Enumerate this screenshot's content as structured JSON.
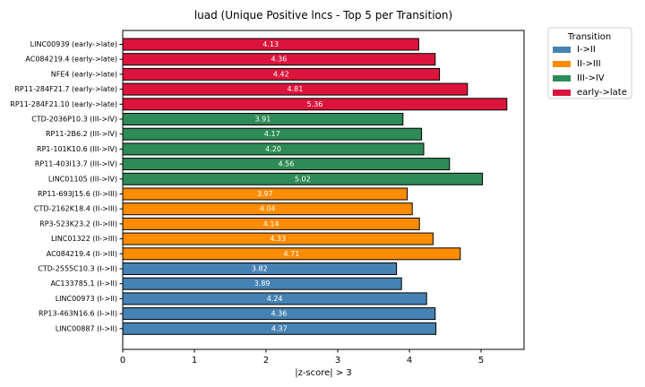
{
  "chart_data": {
    "type": "bar",
    "orientation": "horizontal",
    "title": "luad (Unique Positive lncs - Top 5 per Transition)",
    "xlabel": "|z-score| > 3",
    "ylabel": "",
    "xlim": [
      0,
      5.6
    ],
    "xticks": [
      0,
      1,
      2,
      3,
      4,
      5
    ],
    "grid": false,
    "legend": {
      "title": "Transition",
      "placement": "outside-top-right",
      "entries": [
        {
          "label": "I->II",
          "color": "#4682b4"
        },
        {
          "label": "II->III",
          "color": "#ff8c00"
        },
        {
          "label": "III->IV",
          "color": "#2e8b57"
        },
        {
          "label": "early->late",
          "color": "#dc143c"
        }
      ]
    },
    "bars": [
      {
        "label": "LINC00939 (early->late)",
        "value": 4.13,
        "value_label": "4.13",
        "group": "early->late"
      },
      {
        "label": "AC084219.4 (early->late)",
        "value": 4.36,
        "value_label": "4.36",
        "group": "early->late"
      },
      {
        "label": "NFE4 (early->late)",
        "value": 4.42,
        "value_label": "4.42",
        "group": "early->late"
      },
      {
        "label": "RP11-284F21.7 (early->late)",
        "value": 4.81,
        "value_label": "4.81",
        "group": "early->late"
      },
      {
        "label": "RP11-284F21.10 (early->late)",
        "value": 5.36,
        "value_label": "5.36",
        "group": "early->late"
      },
      {
        "label": "CTD-2036P10.3 (III->IV)",
        "value": 3.91,
        "value_label": "3.91",
        "group": "III->IV"
      },
      {
        "label": "RP11-2B6.2 (III->IV)",
        "value": 4.17,
        "value_label": "4.17",
        "group": "III->IV"
      },
      {
        "label": "RP1-101K10.6 (III->IV)",
        "value": 4.2,
        "value_label": "4.20",
        "group": "III->IV"
      },
      {
        "label": "RP11-403I13.7 (III->IV)",
        "value": 4.56,
        "value_label": "4.56",
        "group": "III->IV"
      },
      {
        "label": "LINC01105 (III->IV)",
        "value": 5.02,
        "value_label": "5.02",
        "group": "III->IV"
      },
      {
        "label": "RP11-693J15.6 (II->III)",
        "value": 3.97,
        "value_label": "3.97",
        "group": "II->III"
      },
      {
        "label": "CTD-2162K18.4 (II->III)",
        "value": 4.04,
        "value_label": "4.04",
        "group": "II->III"
      },
      {
        "label": "RP3-523K23.2 (II->III)",
        "value": 4.14,
        "value_label": "4.14",
        "group": "II->III"
      },
      {
        "label": "LINC01322 (II->III)",
        "value": 4.33,
        "value_label": "4.33",
        "group": "II->III"
      },
      {
        "label": "AC084219.4 (II->III)",
        "value": 4.71,
        "value_label": "4.71",
        "group": "II->III"
      },
      {
        "label": "CTD-2555C10.3 (I->II)",
        "value": 3.82,
        "value_label": "3.82",
        "group": "I->II"
      },
      {
        "label": "AC133785.1 (I->II)",
        "value": 3.89,
        "value_label": "3.89",
        "group": "I->II"
      },
      {
        "label": "LINC00973 (I->II)",
        "value": 4.24,
        "value_label": "4.24",
        "group": "I->II"
      },
      {
        "label": "RP13-463N16.6 (I->II)",
        "value": 4.36,
        "value_label": "4.36",
        "group": "I->II"
      },
      {
        "label": "LINC00887 (I->II)",
        "value": 4.37,
        "value_label": "4.37",
        "group": "I->II"
      }
    ]
  }
}
